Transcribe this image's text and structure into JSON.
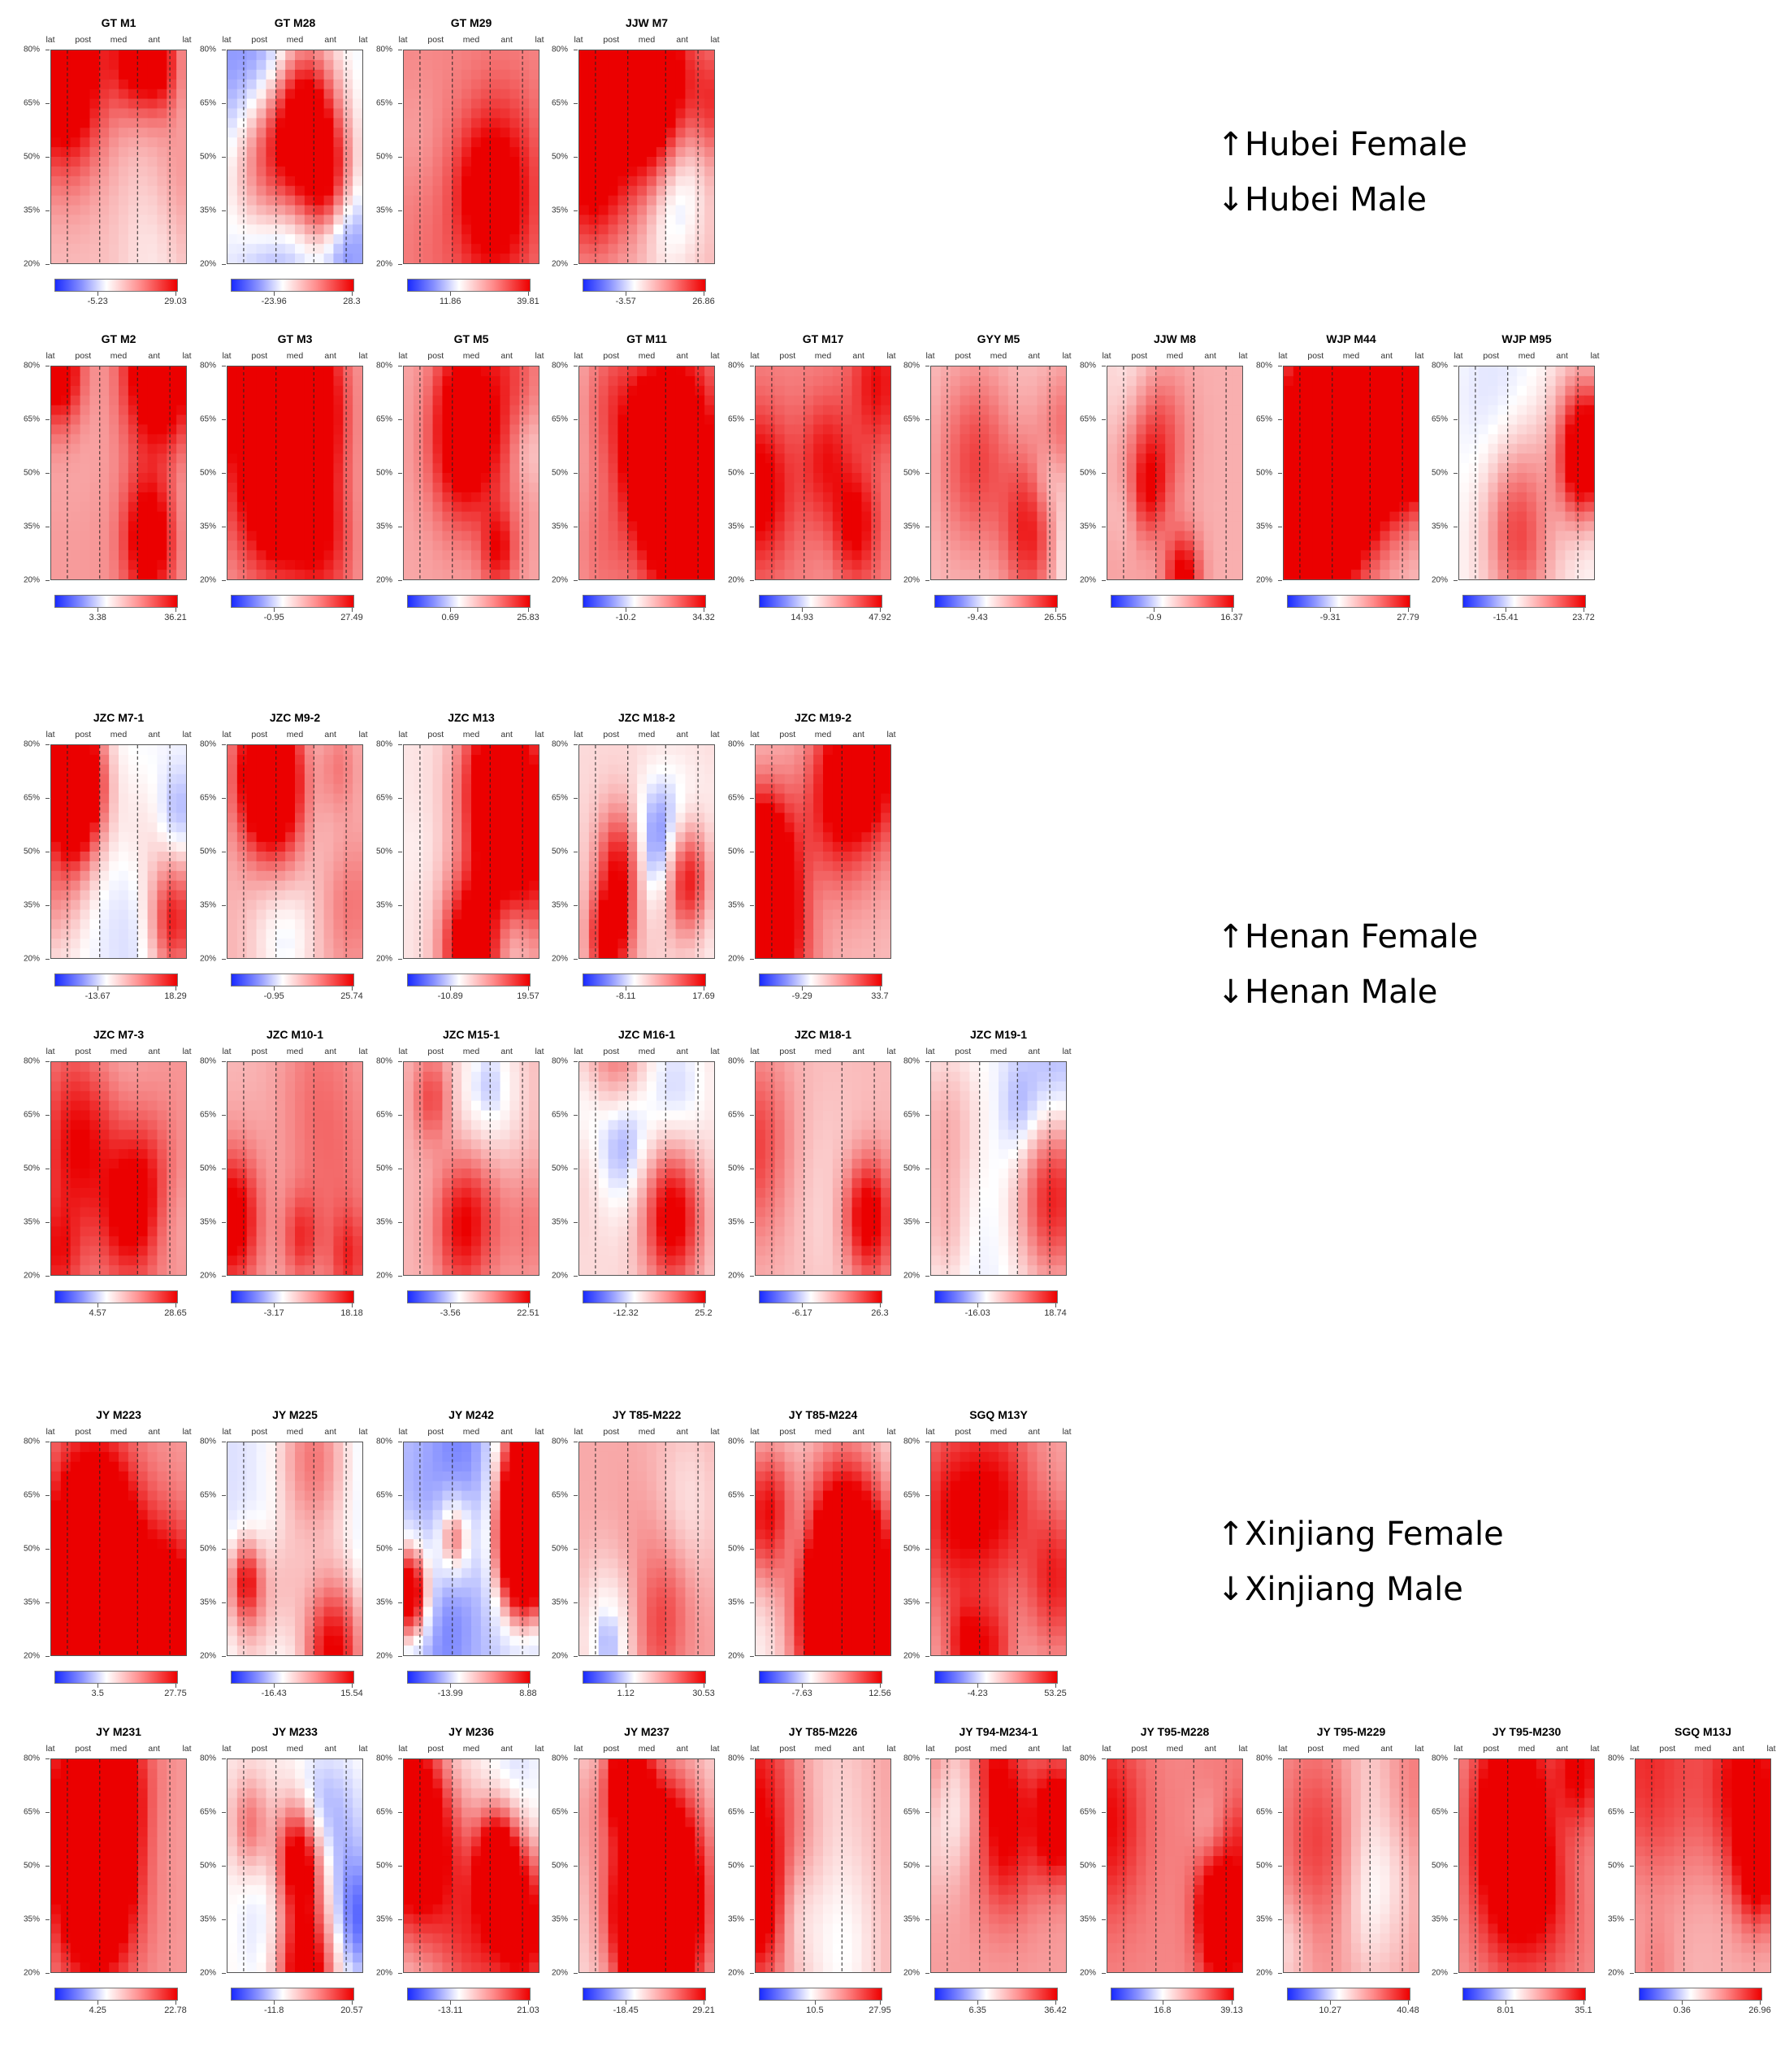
{
  "axis_labels": {
    "x_positions": [
      "lat",
      "post",
      "med",
      "ant",
      "lat"
    ],
    "y_ticks": [
      "80%",
      "65%",
      "50%",
      "35%",
      "20%"
    ]
  },
  "colors": {
    "low": "#1a2bff",
    "mid": "#ffffff",
    "high": "#ee0000"
  },
  "legends": [
    {
      "up": "Hubei Female",
      "down": "Hubei Male"
    },
    {
      "up": "Henan Female",
      "down": "Henan Male"
    },
    {
      "up": "Xinjiang Female",
      "down": "Xinjiang Male"
    }
  ],
  "arrow_up": "↑",
  "arrow_down": "↓",
  "chart_data": [
    {
      "type": "heatmap",
      "group": "Hubei Female",
      "title": "GT M1",
      "colorbar": [
        "-5.23",
        "29.03"
      ],
      "color_range": [
        -12,
        30
      ]
    },
    {
      "type": "heatmap",
      "group": "Hubei Female",
      "title": "GT M28",
      "colorbar": [
        "-23.96",
        "28.3"
      ],
      "color_range": [
        -30,
        30
      ]
    },
    {
      "type": "heatmap",
      "group": "Hubei Female",
      "title": "GT M29",
      "colorbar": [
        "11.86",
        "39.81"
      ],
      "color_range": [
        0,
        40
      ]
    },
    {
      "type": "heatmap",
      "group": "Hubei Female",
      "title": "JJW M7",
      "colorbar": [
        "-3.57",
        "26.86"
      ],
      "color_range": [
        -10,
        28
      ]
    },
    {
      "type": "heatmap",
      "group": "Hubei Male",
      "title": "GT M2",
      "colorbar": [
        "3.38",
        "36.21"
      ],
      "color_range": [
        -5,
        37
      ]
    },
    {
      "type": "heatmap",
      "group": "Hubei Male",
      "title": "GT M3",
      "colorbar": [
        "-0.95",
        "27.49"
      ],
      "color_range": [
        -8,
        28
      ]
    },
    {
      "type": "heatmap",
      "group": "Hubei Male",
      "title": "GT M5",
      "colorbar": [
        "0.69",
        "25.83"
      ],
      "color_range": [
        -6,
        26
      ]
    },
    {
      "type": "heatmap",
      "group": "Hubei Male",
      "title": "GT M11",
      "colorbar": [
        "-10.2",
        "34.32"
      ],
      "color_range": [
        -15,
        35
      ]
    },
    {
      "type": "heatmap",
      "group": "Hubei Male",
      "title": "GT M17",
      "colorbar": [
        "14.93",
        "47.92"
      ],
      "color_range": [
        0,
        48
      ]
    },
    {
      "type": "heatmap",
      "group": "Hubei Male",
      "title": "GYY M5",
      "colorbar": [
        "-9.43",
        "26.55"
      ],
      "color_range": [
        -12,
        27
      ]
    },
    {
      "type": "heatmap",
      "group": "Hubei Male",
      "title": "JJW M8",
      "colorbar": [
        "-0.9",
        "16.37"
      ],
      "color_range": [
        -5,
        17
      ]
    },
    {
      "type": "heatmap",
      "group": "Hubei Male",
      "title": "WJP M44",
      "colorbar": [
        "-9.31",
        "27.79"
      ],
      "color_range": [
        -12,
        28
      ]
    },
    {
      "type": "heatmap",
      "group": "Hubei Male",
      "title": "WJP M95",
      "colorbar": [
        "-15.41",
        "23.72"
      ],
      "color_range": [
        -20,
        24
      ]
    },
    {
      "type": "heatmap",
      "group": "Henan Female",
      "title": "JZC M7-1",
      "colorbar": [
        "-13.67",
        "18.29"
      ],
      "color_range": [
        -18,
        19
      ]
    },
    {
      "type": "heatmap",
      "group": "Henan Female",
      "title": "JZC M9-2",
      "colorbar": [
        "-0.95",
        "25.74"
      ],
      "color_range": [
        -8,
        26
      ]
    },
    {
      "type": "heatmap",
      "group": "Henan Female",
      "title": "JZC M13",
      "colorbar": [
        "-10.89",
        "19.57"
      ],
      "color_range": [
        -14,
        20
      ]
    },
    {
      "type": "heatmap",
      "group": "Henan Female",
      "title": "JZC M18-2",
      "colorbar": [
        "-8.11",
        "17.69"
      ],
      "color_range": [
        -11,
        18
      ]
    },
    {
      "type": "heatmap",
      "group": "Henan Female",
      "title": "JZC M19-2",
      "colorbar": [
        "-9.29",
        "33.7"
      ],
      "color_range": [
        -14,
        34
      ]
    },
    {
      "type": "heatmap",
      "group": "Henan Male",
      "title": "JZC M7-3",
      "colorbar": [
        "4.57",
        "28.65"
      ],
      "color_range": [
        -3,
        29
      ]
    },
    {
      "type": "heatmap",
      "group": "Henan Male",
      "title": "JZC M10-1",
      "colorbar": [
        "-3.17",
        "18.18"
      ],
      "color_range": [
        -7,
        19
      ]
    },
    {
      "type": "heatmap",
      "group": "Henan Male",
      "title": "JZC M15-1",
      "colorbar": [
        "-3.56",
        "22.51"
      ],
      "color_range": [
        -8,
        23
      ]
    },
    {
      "type": "heatmap",
      "group": "Henan Male",
      "title": "JZC M16-1",
      "colorbar": [
        "-12.32",
        "25.2"
      ],
      "color_range": [
        -16,
        26
      ]
    },
    {
      "type": "heatmap",
      "group": "Henan Male",
      "title": "JZC M18-1",
      "colorbar": [
        "-6.17",
        "26.3"
      ],
      "color_range": [
        -10,
        27
      ]
    },
    {
      "type": "heatmap",
      "group": "Henan Male",
      "title": "JZC M19-1",
      "colorbar": [
        "-16.03",
        "18.74"
      ],
      "color_range": [
        -19,
        19
      ]
    },
    {
      "type": "heatmap",
      "group": "Xinjiang Female",
      "title": "JY M223",
      "colorbar": [
        "3.5",
        "27.75"
      ],
      "color_range": [
        -4,
        28
      ]
    },
    {
      "type": "heatmap",
      "group": "Xinjiang Female",
      "title": "JY M225",
      "colorbar": [
        "-16.43",
        "15.54"
      ],
      "color_range": [
        -20,
        16
      ]
    },
    {
      "type": "heatmap",
      "group": "Xinjiang Female",
      "title": "JY M242",
      "colorbar": [
        "-13.99",
        "8.88"
      ],
      "color_range": [
        -17,
        9
      ]
    },
    {
      "type": "heatmap",
      "group": "Xinjiang Female",
      "title": "JY T85-M222",
      "colorbar": [
        "1.12",
        "30.53"
      ],
      "color_range": [
        -8,
        31
      ]
    },
    {
      "type": "heatmap",
      "group": "Xinjiang Female",
      "title": "JY T85-M224",
      "colorbar": [
        "-7.63",
        "12.56"
      ],
      "color_range": [
        -10,
        13
      ]
    },
    {
      "type": "heatmap",
      "group": "Xinjiang Female",
      "title": "SGQ M13Y",
      "colorbar": [
        "-4.23",
        "53.25"
      ],
      "color_range": [
        -12,
        54
      ]
    },
    {
      "type": "heatmap",
      "group": "Xinjiang Male",
      "title": "JY M231",
      "colorbar": [
        "4.25",
        "22.78"
      ],
      "color_range": [
        -3,
        23
      ]
    },
    {
      "type": "heatmap",
      "group": "Xinjiang Male",
      "title": "JY M233",
      "colorbar": [
        "-11.8",
        "20.57"
      ],
      "color_range": [
        -15,
        21
      ]
    },
    {
      "type": "heatmap",
      "group": "Xinjiang Male",
      "title": "JY M236",
      "colorbar": [
        "-13.11",
        "21.03"
      ],
      "color_range": [
        -16,
        22
      ]
    },
    {
      "type": "heatmap",
      "group": "Xinjiang Male",
      "title": "JY M237",
      "colorbar": [
        "-18.45",
        "29.21"
      ],
      "color_range": [
        -20,
        30
      ]
    },
    {
      "type": "heatmap",
      "group": "Xinjiang Male",
      "title": "JY T85-M226",
      "colorbar": [
        "10.5",
        "27.95"
      ],
      "color_range": [
        -4,
        28
      ]
    },
    {
      "type": "heatmap",
      "group": "Xinjiang Male",
      "title": "JY T94-M234-1",
      "colorbar": [
        "6.35",
        "36.42"
      ],
      "color_range": [
        -6,
        37
      ]
    },
    {
      "type": "heatmap",
      "group": "Xinjiang Male",
      "title": "JY T95-M228",
      "colorbar": [
        "16.8",
        "39.13"
      ],
      "color_range": [
        0,
        40
      ]
    },
    {
      "type": "heatmap",
      "group": "Xinjiang Male",
      "title": "JY T95-M229",
      "colorbar": [
        "10.27",
        "40.48"
      ],
      "color_range": [
        -4,
        41
      ]
    },
    {
      "type": "heatmap",
      "group": "Xinjiang Male",
      "title": "JY T95-M230",
      "colorbar": [
        "8.01",
        "35.1"
      ],
      "color_range": [
        -6,
        36
      ]
    },
    {
      "type": "heatmap",
      "group": "Xinjiang Male",
      "title": "SGQ M13J",
      "colorbar": [
        "0.36",
        "26.96"
      ],
      "color_range": [
        -8,
        27
      ]
    }
  ]
}
